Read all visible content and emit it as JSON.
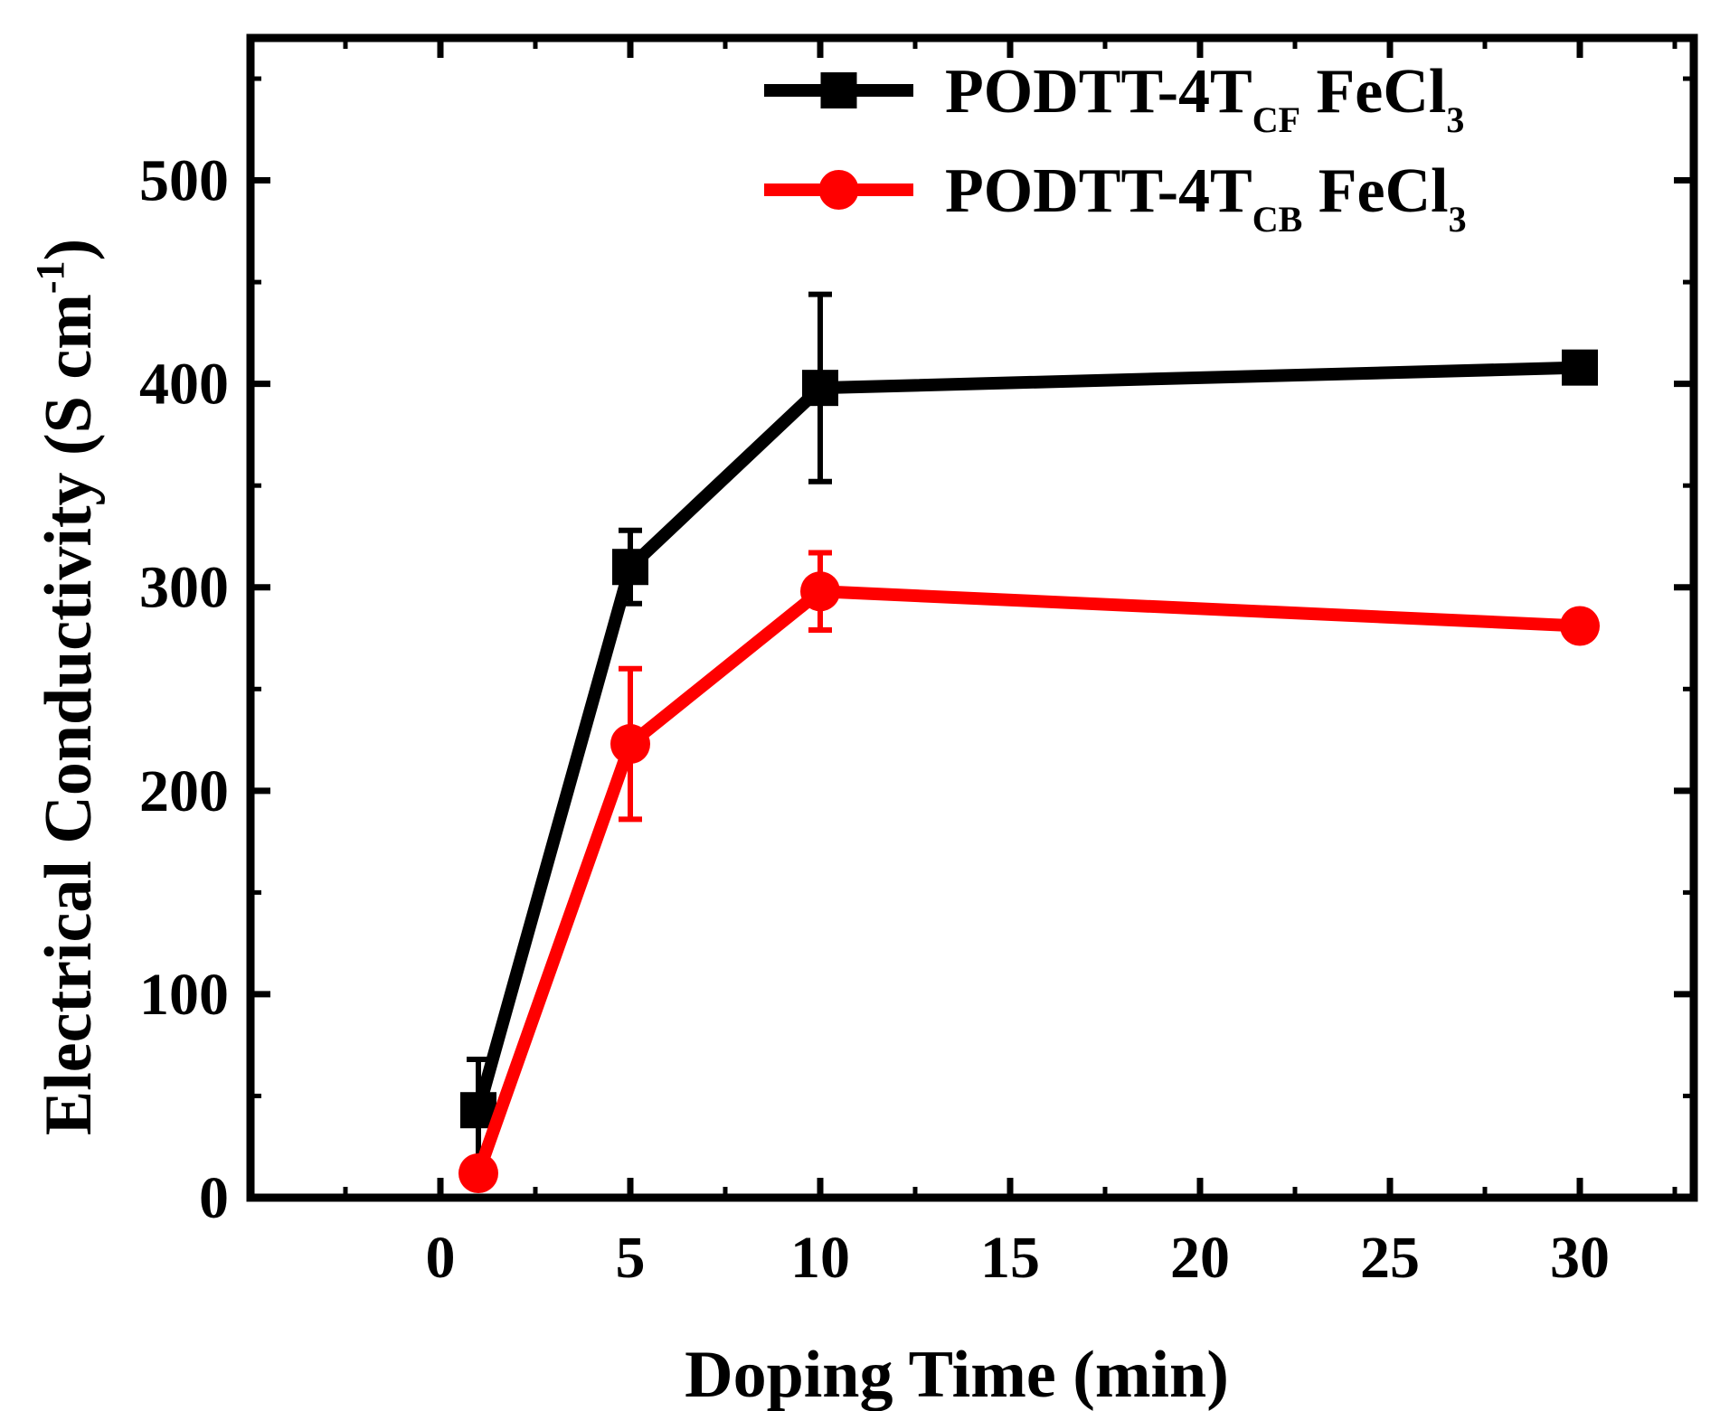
{
  "chart_data": {
    "type": "line",
    "xlabel": "Doping Time (min)",
    "ylabel": "Electrical Conductivity (S cm",
    "ylabel_sup": "-1",
    "ylabel_close": ")",
    "xlim": [
      -5,
      33
    ],
    "ylim": [
      0,
      570
    ],
    "xticks": [
      0,
      5,
      10,
      15,
      20,
      25,
      30
    ],
    "yticks": [
      0,
      100,
      200,
      300,
      400,
      500
    ],
    "legend_position": "top-right",
    "series": [
      {
        "name": "PODTT-4T",
        "name_sub": "CF",
        "name_suffix": " FeCl",
        "name_suffix_sub": "3",
        "color": "#000000",
        "marker": "square",
        "x": [
          1,
          5,
          10,
          30
        ],
        "y": [
          43,
          310,
          398,
          408
        ],
        "err": [
          25,
          18,
          46,
          0
        ]
      },
      {
        "name": "PODTT-4T",
        "name_sub": "CB",
        "name_suffix": " FeCl",
        "name_suffix_sub": "3",
        "color": "#ff0000",
        "marker": "circle",
        "x": [
          1,
          5,
          10,
          30
        ],
        "y": [
          12,
          223,
          298,
          281
        ],
        "err": [
          0,
          37,
          19,
          0
        ]
      }
    ]
  }
}
